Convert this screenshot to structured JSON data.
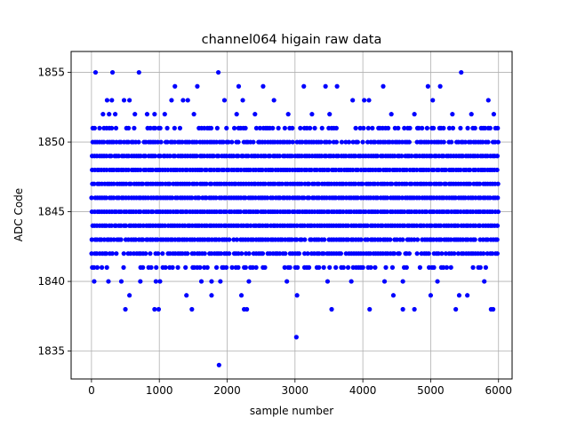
{
  "chart_data": {
    "type": "scatter",
    "title": "channel064 higain raw data",
    "xlabel": "sample number",
    "ylabel": "ADC Code",
    "xlim": [
      -300,
      6200
    ],
    "ylim": [
      1833,
      1856.5
    ],
    "xticks": [
      0,
      1000,
      2000,
      3000,
      4000,
      5000,
      6000
    ],
    "yticks": [
      1835,
      1840,
      1845,
      1850,
      1855
    ],
    "grid": true,
    "marker_color": "#0000ff",
    "n_samples": 6000,
    "series": [
      {
        "name": "",
        "dense_levels": [
          1841,
          1842,
          1843,
          1844,
          1845,
          1846,
          1847,
          1848,
          1849,
          1850,
          1851
        ],
        "sparse_points": [
          {
            "x": 60,
            "y": 1855
          },
          {
            "x": 310,
            "y": 1855
          },
          {
            "x": 700,
            "y": 1855
          },
          {
            "x": 1870,
            "y": 1855
          },
          {
            "x": 5450,
            "y": 1855
          },
          {
            "x": 1230,
            "y": 1854
          },
          {
            "x": 1560,
            "y": 1854
          },
          {
            "x": 2170,
            "y": 1854
          },
          {
            "x": 2530,
            "y": 1854
          },
          {
            "x": 3130,
            "y": 1854
          },
          {
            "x": 3450,
            "y": 1854
          },
          {
            "x": 3620,
            "y": 1854
          },
          {
            "x": 4300,
            "y": 1854
          },
          {
            "x": 4960,
            "y": 1854
          },
          {
            "x": 5140,
            "y": 1854
          },
          {
            "x": 230,
            "y": 1853
          },
          {
            "x": 300,
            "y": 1853
          },
          {
            "x": 480,
            "y": 1853
          },
          {
            "x": 560,
            "y": 1853
          },
          {
            "x": 1180,
            "y": 1853
          },
          {
            "x": 1350,
            "y": 1853
          },
          {
            "x": 1420,
            "y": 1853
          },
          {
            "x": 1960,
            "y": 1853
          },
          {
            "x": 2230,
            "y": 1853
          },
          {
            "x": 2690,
            "y": 1853
          },
          {
            "x": 3850,
            "y": 1853
          },
          {
            "x": 4020,
            "y": 1853
          },
          {
            "x": 4090,
            "y": 1853
          },
          {
            "x": 5030,
            "y": 1853
          },
          {
            "x": 5850,
            "y": 1853
          },
          {
            "x": 170,
            "y": 1852
          },
          {
            "x": 260,
            "y": 1852
          },
          {
            "x": 350,
            "y": 1852
          },
          {
            "x": 640,
            "y": 1852
          },
          {
            "x": 820,
            "y": 1852
          },
          {
            "x": 930,
            "y": 1852
          },
          {
            "x": 1080,
            "y": 1852
          },
          {
            "x": 1510,
            "y": 1852
          },
          {
            "x": 2140,
            "y": 1852
          },
          {
            "x": 2410,
            "y": 1852
          },
          {
            "x": 2900,
            "y": 1852
          },
          {
            "x": 3250,
            "y": 1852
          },
          {
            "x": 3510,
            "y": 1852
          },
          {
            "x": 4420,
            "y": 1852
          },
          {
            "x": 4760,
            "y": 1852
          },
          {
            "x": 5320,
            "y": 1852
          },
          {
            "x": 5600,
            "y": 1852
          },
          {
            "x": 5930,
            "y": 1852
          },
          {
            "x": 40,
            "y": 1840
          },
          {
            "x": 250,
            "y": 1840
          },
          {
            "x": 440,
            "y": 1840
          },
          {
            "x": 720,
            "y": 1840
          },
          {
            "x": 950,
            "y": 1840
          },
          {
            "x": 1010,
            "y": 1840
          },
          {
            "x": 1620,
            "y": 1840
          },
          {
            "x": 1770,
            "y": 1840
          },
          {
            "x": 1900,
            "y": 1840
          },
          {
            "x": 2320,
            "y": 1840
          },
          {
            "x": 2880,
            "y": 1840
          },
          {
            "x": 3480,
            "y": 1840
          },
          {
            "x": 3830,
            "y": 1840
          },
          {
            "x": 4320,
            "y": 1840
          },
          {
            "x": 4590,
            "y": 1840
          },
          {
            "x": 5100,
            "y": 1840
          },
          {
            "x": 5790,
            "y": 1840
          },
          {
            "x": 560,
            "y": 1839
          },
          {
            "x": 1400,
            "y": 1839
          },
          {
            "x": 1770,
            "y": 1839
          },
          {
            "x": 2210,
            "y": 1839
          },
          {
            "x": 3030,
            "y": 1839
          },
          {
            "x": 4450,
            "y": 1839
          },
          {
            "x": 5000,
            "y": 1839
          },
          {
            "x": 5420,
            "y": 1839
          },
          {
            "x": 5540,
            "y": 1839
          },
          {
            "x": 500,
            "y": 1838
          },
          {
            "x": 930,
            "y": 1838
          },
          {
            "x": 990,
            "y": 1838
          },
          {
            "x": 1480,
            "y": 1838
          },
          {
            "x": 2250,
            "y": 1838
          },
          {
            "x": 2290,
            "y": 1838
          },
          {
            "x": 3540,
            "y": 1838
          },
          {
            "x": 4100,
            "y": 1838
          },
          {
            "x": 4590,
            "y": 1838
          },
          {
            "x": 4760,
            "y": 1838
          },
          {
            "x": 5370,
            "y": 1838
          },
          {
            "x": 5890,
            "y": 1838
          },
          {
            "x": 5920,
            "y": 1838
          },
          {
            "x": 3020,
            "y": 1836
          },
          {
            "x": 1880,
            "y": 1834
          }
        ]
      }
    ]
  }
}
